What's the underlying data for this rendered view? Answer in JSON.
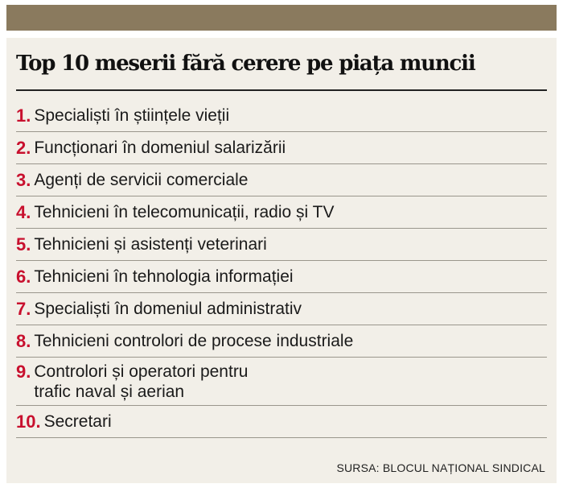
{
  "colors": {
    "top_bar": "#8a7a5e",
    "panel_background": "#f2efe8",
    "number_accent": "#c8102e"
  },
  "title": "Top 10 meserii fără cerere pe piața muncii",
  "items": [
    {
      "num": "1.",
      "text": "Specialiști în științele vieții"
    },
    {
      "num": "2.",
      "text": "Funcționari în domeniul salarizării"
    },
    {
      "num": "3.",
      "text": "Agenți de servicii comerciale"
    },
    {
      "num": "4.",
      "text": "Tehnicieni în telecomunicații, radio și TV"
    },
    {
      "num": "5.",
      "text": "Tehnicieni și asistenți veterinari"
    },
    {
      "num": "6.",
      "text": "Tehnicieni în tehnologia informației"
    },
    {
      "num": "7.",
      "text": "Specialiști în domeniul administrativ"
    },
    {
      "num": "8.",
      "text": "Tehnicieni controlori de procese industriale"
    },
    {
      "num": "9.",
      "text": "Controlori și operatori pentru\ntrafic naval și aerian"
    },
    {
      "num": "10.",
      "text": "Secretari"
    }
  ],
  "source": "SURSA: BLOCUL NAȚIONAL SINDICAL"
}
